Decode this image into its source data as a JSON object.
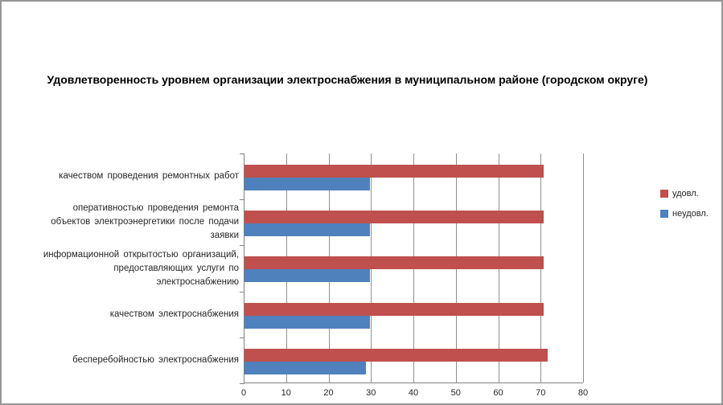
{
  "title": "Удовлетворенность уровнем организации  электроснабжения в муниципальном районе (городском округе)",
  "legend": [
    {
      "label": "удовл.",
      "color": "#C0504D"
    },
    {
      "label": "неудовл.",
      "color": "#4F81BD"
    }
  ],
  "chart_data": {
    "type": "bar",
    "orientation": "horizontal",
    "title": "Удовлетворенность уровнем организации  электроснабжения в муниципальном районе (городском округе)",
    "categories": [
      "качеством проведения ремонтных работ",
      "оперативностью проведения ремонта объектов электроэнергетики после подачи заявки",
      "информационной открытостью организаций, предоставляющих услуги по электроснабжению",
      "качеством электроснабжения",
      "бесперебойностью электроснабжения"
    ],
    "series": [
      {
        "name": "удовл.",
        "color": "#C0504D",
        "values": [
          70.5,
          70.5,
          70.5,
          70.5,
          71.4
        ]
      },
      {
        "name": "неудовл.",
        "color": "#4F81BD",
        "values": [
          29.5,
          29.5,
          29.5,
          29.5,
          28.6
        ]
      }
    ],
    "xlim": [
      0,
      80
    ],
    "x_ticks": [
      0,
      10,
      20,
      30,
      40,
      50,
      60,
      70,
      80
    ],
    "grid": true,
    "legend_position": "right",
    "gridline_color": "#909090",
    "axis_color": "#808080"
  }
}
